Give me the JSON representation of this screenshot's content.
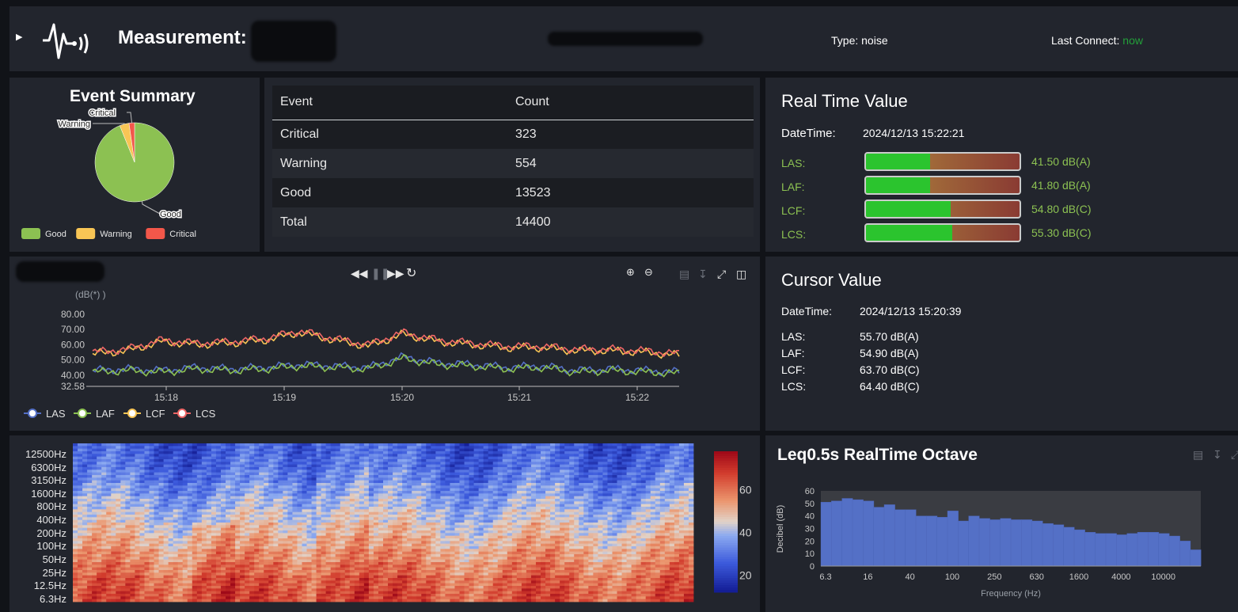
{
  "header": {
    "collapse_icon": "triangle-right-icon",
    "logo_icon": "sound-wave-icon",
    "title": "Measurement:",
    "type_text": "Type: noise",
    "last_connect_label": "Last Connect:",
    "last_connect_value": "now",
    "accent": "#23a03a"
  },
  "summary": {
    "title": "Event Summary",
    "pie": [
      {
        "name": "Good",
        "value": 13523,
        "color": "#8cc152"
      },
      {
        "name": "Warning",
        "value": 554,
        "color": "#f8c555"
      },
      {
        "name": "Critical",
        "value": 323,
        "color": "#f2574a"
      }
    ],
    "legend": [
      "Good",
      "Warning",
      "Critical"
    ]
  },
  "events": {
    "headers": [
      "Event",
      "Count"
    ],
    "rows": [
      {
        "event": "Critical",
        "count": "323"
      },
      {
        "event": "Warning",
        "count": "554"
      },
      {
        "event": "Good",
        "count": "13523"
      },
      {
        "event": "Total",
        "count": "14400"
      }
    ]
  },
  "realtime": {
    "title": "Real Time Value",
    "datetime_label": "DateTime:",
    "datetime_value": "2024/12/13 15:22:21",
    "meters": [
      {
        "label": "LAS:",
        "value": "41.50",
        "unit": "dB(A)",
        "fraction": 0.42
      },
      {
        "label": "LAF:",
        "value": "41.80",
        "unit": "dB(A)",
        "fraction": 0.42
      },
      {
        "label": "LCF:",
        "value": "54.80",
        "unit": "dB(C)",
        "fraction": 0.55
      },
      {
        "label": "LCS:",
        "value": "55.30",
        "unit": "dB(C)",
        "fraction": 0.56
      }
    ]
  },
  "toolbar": {
    "rewind": "rewind-icon",
    "pause": "pause-icon",
    "forward": "fast-forward-icon",
    "refresh": "refresh-icon",
    "zoom_in": "zoom-in-icon",
    "zoom_out": "zoom-out-icon",
    "data_view": "data-view-icon",
    "download": "download-icon",
    "fullscreen": "fullscreen-icon",
    "save": "save-icon"
  },
  "cursor": {
    "title": "Cursor Value",
    "datetime_label": "DateTime:",
    "datetime_value": "2024/12/13 15:20:39",
    "rows": [
      {
        "label": "LAS:",
        "value": "55.70 dB(A)"
      },
      {
        "label": "LAF:",
        "value": "54.90 dB(A)"
      },
      {
        "label": "LCF:",
        "value": "63.70 dB(C)"
      },
      {
        "label": "LCS:",
        "value": "64.40 dB(C)"
      }
    ]
  },
  "chart_data": [
    {
      "type": "line",
      "title": "",
      "ylabel": "(dB(*) )",
      "xlabel": "",
      "ylim": [
        32.58,
        80
      ],
      "yticks": [
        "80.00",
        "70.00",
        "60.00",
        "50.00",
        "40.00",
        "32.58"
      ],
      "xticks": [
        "15:18",
        "15:19",
        "15:20",
        "15:21",
        "15:22"
      ],
      "x": [
        "15:17.3",
        "15:17.6",
        "15:17.9",
        "15:18.2",
        "15:18.5",
        "15:18.8",
        "15:19.1",
        "15:19.4",
        "15:19.7",
        "15:20.0",
        "15:20.3",
        "15:20.6",
        "15:20.9",
        "15:21.2",
        "15:21.5",
        "15:21.8",
        "15:22.1",
        "15:22.3"
      ],
      "series": [
        {
          "name": "LAS",
          "color": "#5470c6",
          "values": [
            43,
            44,
            43,
            45,
            44,
            45,
            47,
            46,
            45,
            52,
            48,
            47,
            45,
            46,
            43,
            44,
            43,
            42
          ]
        },
        {
          "name": "LAF",
          "color": "#8cc152",
          "values": [
            42,
            43,
            42,
            44,
            43,
            44,
            46,
            45,
            44,
            51,
            47,
            46,
            44,
            45,
            42,
            43,
            42,
            41
          ]
        },
        {
          "name": "LCF",
          "color": "#f8c555",
          "values": [
            54,
            56,
            62,
            60,
            61,
            63,
            68,
            63,
            59,
            67,
            62,
            60,
            58,
            58,
            56,
            56,
            55,
            53
          ]
        },
        {
          "name": "LCS",
          "color": "#ee6666",
          "values": [
            55,
            57,
            63,
            61,
            62,
            64,
            69,
            64,
            60,
            68,
            63,
            61,
            59,
            59,
            57,
            57,
            56,
            54
          ]
        }
      ]
    },
    {
      "type": "heatmap",
      "title": "",
      "y_categories": [
        "12500Hz",
        "6300Hz",
        "3150Hz",
        "1600Hz",
        "800Hz",
        "400Hz",
        "200Hz",
        "100Hz",
        "50Hz",
        "25Hz",
        "12.5Hz",
        "6.3Hz"
      ],
      "colorbar_ticks": [
        "60",
        "40",
        "20"
      ],
      "value_range": [
        12,
        78
      ],
      "band_means": [
        25,
        27,
        30,
        34,
        38,
        42,
        46,
        50,
        54,
        58,
        62,
        64
      ]
    },
    {
      "type": "bar",
      "title": "Leq0.5s RealTime Octave",
      "xlabel": "Frequency (Hz)",
      "ylabel": "Decibel (dB)",
      "ylim": [
        0,
        60
      ],
      "yticks": [
        "0",
        "10",
        "20",
        "30",
        "40",
        "50",
        "60"
      ],
      "xticks": [
        "6.3",
        "16",
        "40",
        "100",
        "250",
        "630",
        "1600",
        "4000",
        "10000"
      ],
      "categories": [
        "6.3",
        "8",
        "10",
        "12.5",
        "16",
        "20",
        "25",
        "31.5",
        "40",
        "50",
        "63",
        "80",
        "100",
        "125",
        "160",
        "200",
        "250",
        "315",
        "400",
        "500",
        "630",
        "800",
        "1000",
        "1250",
        "1600",
        "2000",
        "2500",
        "3150",
        "4000",
        "5000",
        "6300",
        "8000",
        "10000",
        "12500",
        "16000",
        "20000"
      ],
      "values": [
        51,
        52,
        54,
        53,
        52,
        47,
        49,
        45,
        45,
        40,
        40,
        39,
        44,
        36,
        40,
        38,
        37,
        38,
        37,
        37,
        36,
        34,
        33,
        31,
        29,
        27,
        26,
        26,
        25,
        26,
        27,
        27,
        26,
        24,
        20,
        13
      ]
    }
  ]
}
